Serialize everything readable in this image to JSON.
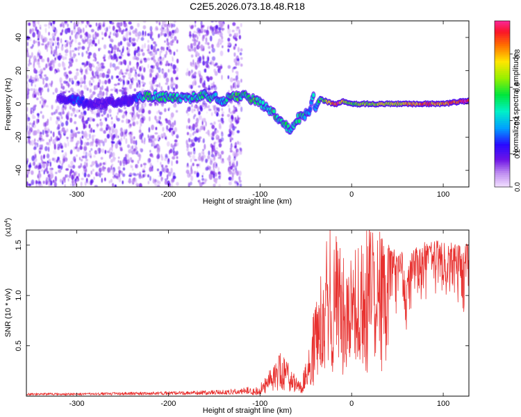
{
  "title": "C2E5.2026.073.18.48.R18",
  "chart_data": [
    {
      "type": "heatmap",
      "name": "spectrogram",
      "xlabel": "Height of straight line (km)",
      "ylabel": "Frequency (Hz)",
      "xlim": [
        -355,
        128
      ],
      "ylim": [
        -50,
        50
      ],
      "xticks": [
        -300,
        -200,
        -100,
        0,
        100
      ],
      "xtick_labels": [
        "-300",
        "-200",
        "-100",
        "0",
        "100"
      ],
      "yticks": [
        -40,
        -20,
        0,
        20,
        40
      ],
      "ytick_labels": [
        "-40",
        "-20",
        "0",
        "20",
        "40"
      ],
      "colorbar": {
        "label": "Normalized spectral amplitude",
        "range": [
          0,
          1
        ],
        "ticks": [
          0.0,
          0.2,
          0.4,
          0.6,
          0.8
        ],
        "tick_labels": [
          "0.0",
          "0.2",
          "0.4",
          "0.6",
          "0.8"
        ]
      },
      "noise_floor": {
        "description": "scattered low-amplitude speckle",
        "x_ranges": [
          [
            -355,
            -225
          ],
          [
            -222,
            -190
          ],
          [
            -180,
            -140
          ],
          [
            -135,
            -120
          ]
        ],
        "amplitude": 0.12
      },
      "signal_track": {
        "x": [
          -320,
          -300,
          -280,
          -240,
          -225,
          -200,
          -180,
          -160,
          -150,
          -140,
          -130,
          -120,
          -110,
          -100,
          -90,
          -85,
          -80,
          -75,
          -70,
          -65,
          -60,
          -55,
          -50,
          -45,
          -42,
          -40,
          -35,
          -30,
          -25,
          -20,
          -15,
          -10,
          0,
          20,
          40,
          60,
          80,
          100,
          128
        ],
        "freq": [
          3,
          2,
          0,
          2,
          5,
          4,
          3,
          5,
          4,
          2,
          4,
          5,
          3,
          1,
          -3,
          -6,
          -10,
          -12,
          -14,
          -15,
          -9,
          -8,
          -6,
          -3,
          8,
          -4,
          3,
          2,
          1,
          0,
          0,
          2,
          0,
          0,
          0,
          0,
          0,
          0,
          2
        ],
        "amplitude": [
          0.15,
          0.3,
          0.15,
          0.2,
          0.5,
          0.5,
          0.45,
          0.5,
          0.45,
          0.4,
          0.55,
          0.5,
          0.55,
          0.5,
          0.45,
          0.55,
          0.5,
          0.45,
          0.5,
          0.4,
          0.55,
          0.5,
          0.4,
          0.3,
          0.45,
          0.35,
          0.5,
          0.6,
          0.7,
          0.9,
          0.95,
          0.7,
          0.6,
          0.65,
          0.7,
          0.75,
          0.85,
          0.8,
          0.9
        ]
      }
    },
    {
      "type": "line",
      "name": "snr",
      "xlabel": "Height of straight line (km)",
      "ylabel": "SNR (10 * v/v)",
      "y_multiplier_label": "(x10",
      "y_multiplier_exp": "4",
      "y_multiplier_close": ")",
      "xlim": [
        -355,
        128
      ],
      "ylim": [
        0,
        1.65
      ],
      "xticks": [
        -300,
        -200,
        -100,
        0,
        100
      ],
      "xtick_labels": [
        "-300",
        "-200",
        "-100",
        "0",
        "100"
      ],
      "yticks": [
        0.5,
        1.0,
        1.5
      ],
      "ytick_labels": [
        "0.5",
        "1.0",
        "1.5"
      ],
      "color": "#e8312f",
      "series": [
        {
          "name": "SNR",
          "x": [
            -355,
            -300,
            -250,
            -200,
            -180,
            -160,
            -140,
            -120,
            -105,
            -95,
            -85,
            -78,
            -70,
            -62,
            -55,
            -48,
            -42,
            -36,
            -30,
            -24,
            -21,
            -18,
            -12,
            -6,
            0,
            8,
            16,
            24,
            32,
            40,
            48,
            56,
            60,
            64,
            72,
            80,
            90,
            100,
            110,
            120,
            128
          ],
          "y": [
            0.02,
            0.02,
            0.025,
            0.03,
            0.03,
            0.035,
            0.04,
            0.05,
            0.07,
            0.15,
            0.3,
            0.42,
            0.3,
            0.2,
            0.12,
            0.35,
            0.7,
            1.0,
            1.3,
            1.45,
            1.6,
            1.5,
            1.3,
            1.1,
            1.2,
            1.35,
            1.45,
            1.55,
            1.5,
            1.52,
            1.5,
            1.42,
            1.15,
            1.4,
            1.5,
            1.53,
            1.55,
            1.54,
            1.52,
            1.5,
            1.52
          ]
        }
      ]
    }
  ]
}
